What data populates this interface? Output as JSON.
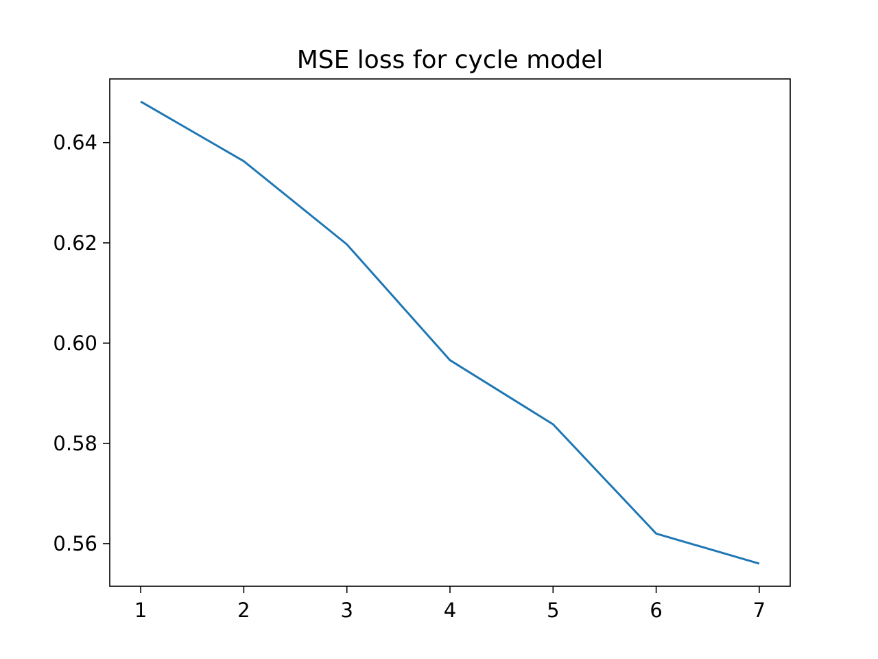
{
  "chart_data": {
    "type": "line",
    "title": "MSE loss for cycle model",
    "xlabel": "",
    "ylabel": "",
    "x": [
      1,
      2,
      3,
      4,
      5,
      6,
      7
    ],
    "series": [
      {
        "values": [
          0.6482,
          0.6363,
          0.6197,
          0.5966,
          0.5838,
          0.562,
          0.556
        ],
        "color": "#1f77b4"
      }
    ],
    "xticks": [
      1,
      2,
      3,
      4,
      5,
      6,
      7
    ],
    "xtick_labels": [
      "1",
      "2",
      "3",
      "4",
      "5",
      "6",
      "7"
    ],
    "yticks": [
      0.56,
      0.58,
      0.6,
      0.62,
      0.64
    ],
    "ytick_labels": [
      "0.56",
      "0.58",
      "0.60",
      "0.62",
      "0.64"
    ],
    "xlim": [
      0.7,
      7.3
    ],
    "ylim": [
      0.5515,
      0.6527
    ],
    "grid": false,
    "legend": "none"
  }
}
